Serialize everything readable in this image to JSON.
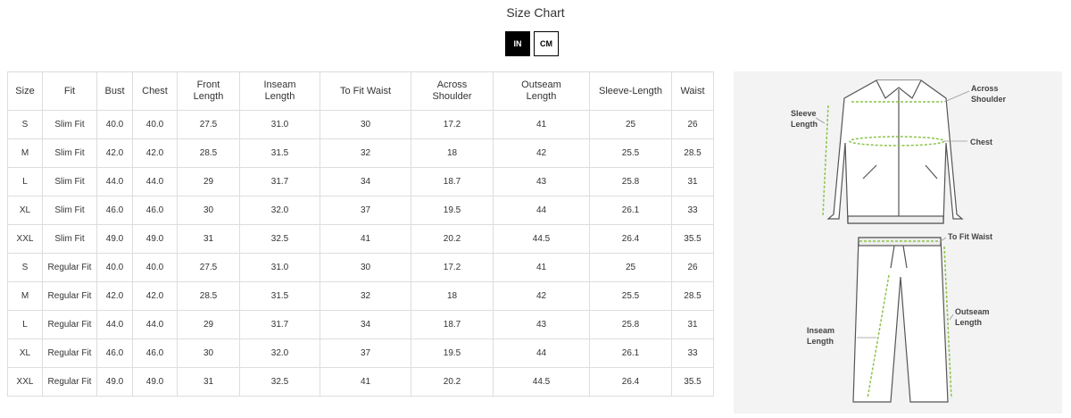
{
  "title": "Size Chart",
  "units": {
    "in": "IN",
    "cm": "CM",
    "selected": "IN"
  },
  "table": {
    "headers": [
      "Size",
      "Fit",
      "Bust",
      "Chest",
      "Front Length",
      "Inseam Length",
      "To Fit Waist",
      "Across Shoulder",
      "Outseam Length",
      "Sleeve-Length",
      "Waist"
    ],
    "rows": [
      [
        "S",
        "Slim Fit",
        "40.0",
        "40.0",
        "27.5",
        "31.0",
        "30",
        "17.2",
        "41",
        "25",
        "26"
      ],
      [
        "M",
        "Slim Fit",
        "42.0",
        "42.0",
        "28.5",
        "31.5",
        "32",
        "18",
        "42",
        "25.5",
        "28.5"
      ],
      [
        "L",
        "Slim Fit",
        "44.0",
        "44.0",
        "29",
        "31.7",
        "34",
        "18.7",
        "43",
        "25.8",
        "31"
      ],
      [
        "XL",
        "Slim Fit",
        "46.0",
        "46.0",
        "30",
        "32.0",
        "37",
        "19.5",
        "44",
        "26.1",
        "33"
      ],
      [
        "XXL",
        "Slim Fit",
        "49.0",
        "49.0",
        "31",
        "32.5",
        "41",
        "20.2",
        "44.5",
        "26.4",
        "35.5"
      ],
      [
        "S",
        "Regular Fit",
        "40.0",
        "40.0",
        "27.5",
        "31.0",
        "30",
        "17.2",
        "41",
        "25",
        "26"
      ],
      [
        "M",
        "Regular Fit",
        "42.0",
        "42.0",
        "28.5",
        "31.5",
        "32",
        "18",
        "42",
        "25.5",
        "28.5"
      ],
      [
        "L",
        "Regular Fit",
        "44.0",
        "44.0",
        "29",
        "31.7",
        "34",
        "18.7",
        "43",
        "25.8",
        "31"
      ],
      [
        "XL",
        "Regular Fit",
        "46.0",
        "46.0",
        "30",
        "32.0",
        "37",
        "19.5",
        "44",
        "26.1",
        "33"
      ],
      [
        "XXL",
        "Regular Fit",
        "49.0",
        "49.0",
        "31",
        "32.5",
        "41",
        "20.2",
        "44.5",
        "26.4",
        "35.5"
      ]
    ]
  },
  "diagram": {
    "labels": {
      "across_shoulder": [
        "Across",
        "Shoulder"
      ],
      "sleeve_length": [
        "Sleeve",
        "Length"
      ],
      "chest": "Chest",
      "to_fit_waist": "To Fit Waist",
      "outseam_length": [
        "Outseam",
        "Length"
      ],
      "inseam_length": [
        "Inseam",
        "Length"
      ]
    },
    "accent": "#8bc34a"
  }
}
